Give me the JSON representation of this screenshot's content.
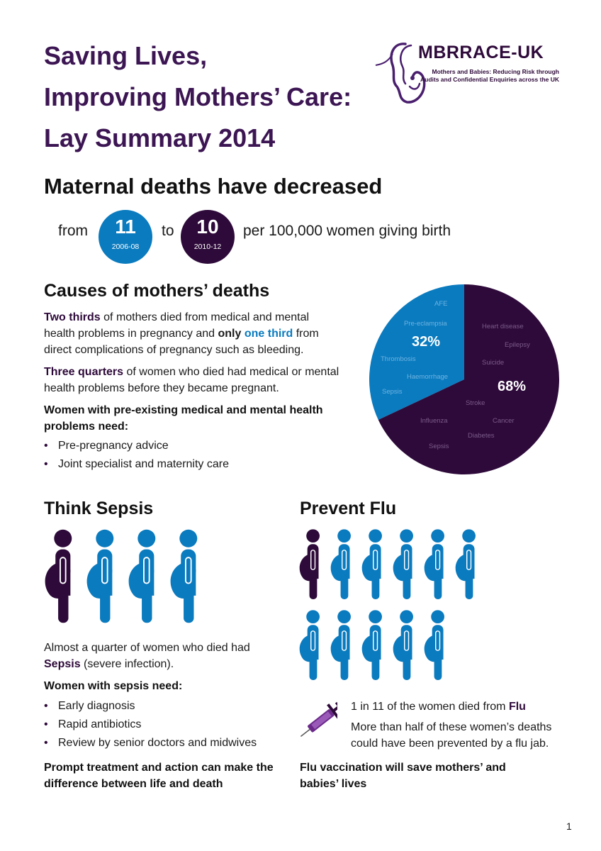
{
  "title_lines": [
    "Saving Lives,",
    "Improving Mothers’ Care:",
    "Lay Summary 2014"
  ],
  "logo": {
    "name": "MBRRACE-UK",
    "tagline_1": "Mothers and Babies: Reducing Risk through",
    "tagline_2": "Audits and Confidential Enquiries across the UK"
  },
  "colors": {
    "purple": "#2e0a3a",
    "blue": "#0a7bbf",
    "title_purple": "#3c1553"
  },
  "deaths": {
    "heading": "Maternal deaths have decreased",
    "from_label": "from",
    "to_label": "to",
    "before": {
      "value": "11",
      "period": "2006-08"
    },
    "after": {
      "value": "10",
      "period": "2010-12"
    },
    "rate_text": "per 100,000 women giving birth"
  },
  "causes": {
    "heading": "Causes of mothers’ deaths",
    "p1": {
      "lead": "Two thirds",
      "mid1": " of mothers died from medical and mental health problems in pregnancy and ",
      "only": "only",
      "space": " ",
      "one_third": "one third",
      "mid2": " from direct complications of pregnancy such as bleeding."
    },
    "p2": {
      "lead": "Three quarters",
      "rest": " of women who died had medical or mental health problems before they became pregnant."
    },
    "need_heading": "Women with pre-existing medical and mental health problems need:",
    "needs": [
      "Pre-pregnancy advice",
      "Joint specialist and maternity care"
    ],
    "pie": {
      "slices": [
        {
          "percent": 32,
          "label": "32%",
          "color": "#0a7bbf",
          "label_color": "#6fb3e0",
          "causes": [
            "AFE",
            "Pre-eclampsia",
            "Thrombosis",
            "Haemorrhage",
            "Sepsis"
          ]
        },
        {
          "percent": 68,
          "label": "68%",
          "color": "#2e0a3a",
          "label_color": "#7a5a8a",
          "causes": [
            "Heart disease",
            "Epilepsy",
            "Suicide",
            "Stroke",
            "Cancer",
            "Influenza",
            "Diabetes",
            "Sepsis"
          ]
        }
      ]
    }
  },
  "sepsis": {
    "heading": "Think Sepsis",
    "figures": [
      {
        "color": "#2e0a3a",
        "died_of_cause": true
      },
      {
        "color": "#0a7bbf",
        "died_of_cause": false
      },
      {
        "color": "#0a7bbf",
        "died_of_cause": false
      },
      {
        "color": "#0a7bbf",
        "died_of_cause": false
      }
    ],
    "desc": {
      "text": "Almost a quarter of women who died had ",
      "term": "Sepsis",
      "after": " (severe infection)."
    },
    "need_heading": "Women with sepsis need:",
    "needs": [
      "Early diagnosis",
      "Rapid antibiotics",
      "Review by senior doctors and midwives"
    ],
    "conclusion": "Prompt treatment and action can make the difference between life and death"
  },
  "flu": {
    "heading": "Prevent Flu",
    "figures_total": 11,
    "figures_highlighted": 1,
    "stat": {
      "text": "1 in 11 of the women died from ",
      "term": "Flu"
    },
    "prevent": "More than half of these women’s deaths could have been prevented by a flu jab.",
    "conclusion": "Flu vaccination will save mothers’ and babies’ lives",
    "icon": "syringe-icon"
  },
  "page_number": "1"
}
